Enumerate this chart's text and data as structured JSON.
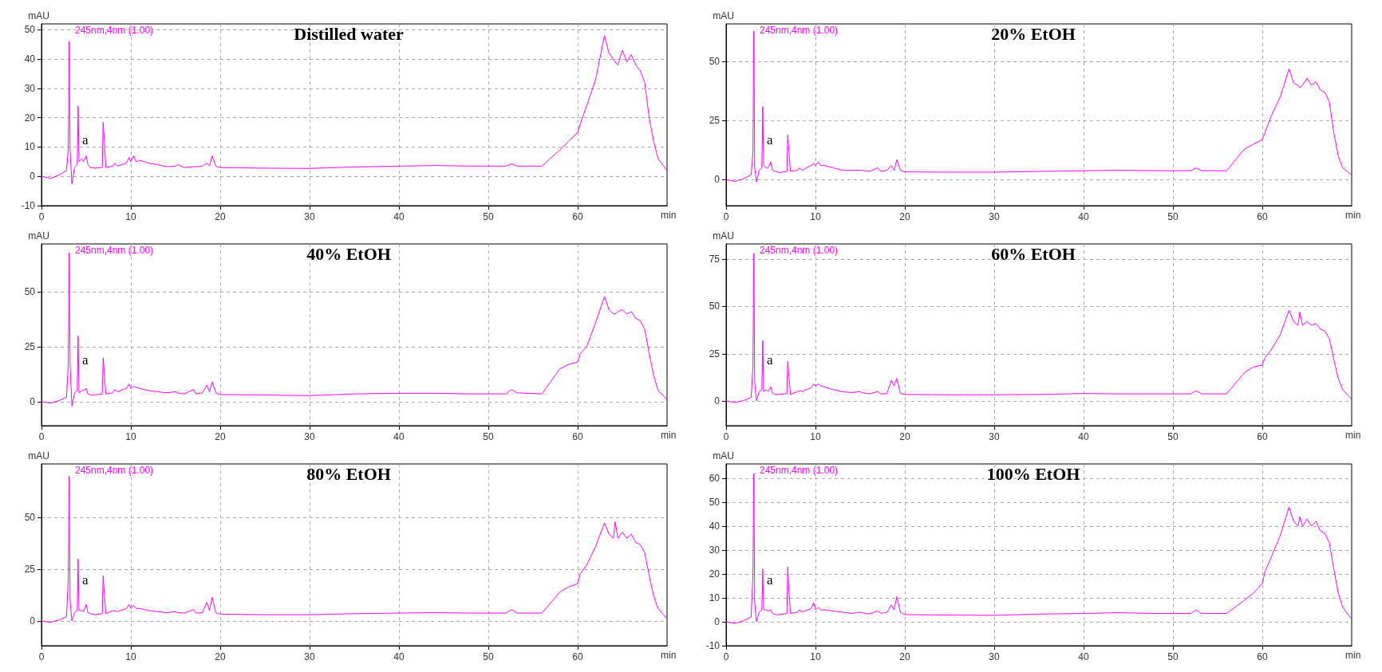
{
  "chart_data": [
    {
      "type": "line",
      "title": "Distilled water",
      "xlabel": "min",
      "ylabel": "mAU",
      "annotations": [
        "245nm,4nm (1.00)",
        "a"
      ],
      "xlim": [
        0,
        70
      ],
      "xticks": [
        0,
        10,
        20,
        30,
        40,
        50,
        60
      ],
      "ylim": [
        -10,
        52
      ],
      "yticks": [
        -10,
        0,
        10,
        20,
        30,
        40,
        50
      ],
      "grid": true,
      "x": [
        0,
        1,
        2,
        2.8,
        3.0,
        3.1,
        3.2,
        3.4,
        3.7,
        4.0,
        4.1,
        4.2,
        4.5,
        4.7,
        5.0,
        5.2,
        5.5,
        6.0,
        6.8,
        6.9,
        7.0,
        7.2,
        8,
        8.2,
        8.5,
        9.5,
        9.8,
        10,
        10.3,
        10.6,
        11,
        12,
        13,
        14,
        15,
        15.2,
        16,
        17,
        17.3,
        18,
        18.5,
        18.8,
        19.1,
        19.5,
        20,
        25,
        30,
        35,
        40,
        44,
        48,
        52,
        52.6,
        53.2,
        56,
        58,
        59,
        60,
        60.3,
        61,
        62,
        63,
        63.5,
        64,
        64.2,
        64.5,
        65,
        65.5,
        66,
        66.5,
        67,
        67.5,
        68,
        68.5,
        69,
        70
      ],
      "series": [
        {
          "color": "#ff00ff",
          "values": [
            0,
            -0.7,
            0.5,
            2,
            9,
            46,
            9,
            -2.5,
            3,
            4,
            24,
            5,
            6,
            5,
            7,
            4,
            3,
            2.8,
            3,
            18.5,
            14,
            3,
            3.5,
            4.5,
            3.5,
            4.5,
            6.5,
            5,
            7,
            5,
            5.5,
            4.5,
            4,
            3.3,
            3.5,
            4,
            3,
            3.3,
            3.3,
            3.5,
            4.5,
            3.5,
            7,
            3.5,
            3,
            2.8,
            2.7,
            3.2,
            3.5,
            3.7,
            3.5,
            3.5,
            4.3,
            3.5,
            3.5,
            9,
            12,
            15,
            18,
            24,
            33,
            48,
            42,
            40,
            39,
            38,
            43,
            39,
            41.5,
            38,
            36,
            32,
            20,
            12,
            6,
            2
          ]
        }
      ]
    },
    {
      "type": "line",
      "title": "20% EtOH",
      "xlabel": "min",
      "ylabel": "mAU",
      "annotations": [
        "245nm,4nm (1.00)",
        "a"
      ],
      "xlim": [
        0,
        70
      ],
      "xticks": [
        0,
        10,
        20,
        30,
        40,
        50,
        60
      ],
      "ylim": [
        -11,
        66
      ],
      "yticks": [
        0,
        25,
        50
      ],
      "grid": true,
      "x": [
        0,
        1,
        2,
        2.8,
        3.0,
        3.1,
        3.2,
        3.4,
        3.7,
        4.0,
        4.1,
        4.2,
        4.5,
        4.7,
        5.0,
        5.2,
        5.5,
        6.0,
        6.8,
        6.9,
        7.0,
        7.2,
        8,
        8.2,
        8.5,
        9.5,
        9.8,
        10,
        10.3,
        10.6,
        11,
        12,
        13,
        14,
        15,
        15.2,
        16,
        17,
        17.3,
        18,
        18.5,
        18.8,
        19.1,
        19.5,
        20,
        25,
        30,
        35,
        40,
        44,
        48,
        52,
        52.6,
        53.2,
        56,
        58,
        59,
        60,
        60.3,
        61,
        62,
        63,
        63.5,
        64,
        64.2,
        64.5,
        65,
        65.5,
        66,
        66.5,
        67,
        67.5,
        68,
        68.5,
        69,
        70
      ],
      "series": [
        {
          "color": "#ff00ff",
          "values": [
            0,
            -0.7,
            0.5,
            2,
            11,
            63,
            5,
            -1,
            4,
            5,
            31,
            6,
            5,
            5,
            7.5,
            4,
            3.5,
            3,
            3.5,
            19,
            14,
            3.5,
            4,
            5,
            4,
            6,
            7,
            6,
            7.5,
            6,
            6,
            5,
            4,
            4,
            4,
            4,
            3.5,
            5,
            3.5,
            4,
            6,
            4,
            8.5,
            4,
            3.3,
            3.2,
            3.2,
            3.5,
            3.8,
            4,
            3.8,
            3.8,
            5,
            3.8,
            3.8,
            13,
            15,
            17,
            20,
            27,
            35,
            47,
            41,
            40,
            39,
            40,
            43,
            40,
            41.5,
            38,
            37,
            33,
            20,
            10,
            5,
            2
          ]
        }
      ]
    },
    {
      "type": "line",
      "title": "40% EtOH",
      "xlabel": "min",
      "ylabel": "mAU",
      "annotations": [
        "245nm,4nm (1.00)",
        "a"
      ],
      "xlim": [
        0,
        70
      ],
      "xticks": [
        0,
        10,
        20,
        30,
        40,
        50,
        60
      ],
      "ylim": [
        -11,
        72
      ],
      "yticks": [
        0,
        25,
        50
      ],
      "grid": true,
      "x": [
        0,
        1,
        2,
        2.8,
        3.0,
        3.1,
        3.2,
        3.4,
        3.7,
        4.0,
        4.1,
        4.2,
        4.5,
        4.7,
        5.0,
        5.2,
        5.5,
        6.0,
        6.8,
        6.9,
        7.0,
        7.2,
        8,
        8.2,
        8.5,
        9.5,
        9.8,
        10,
        10.3,
        10.6,
        11,
        12,
        13,
        14,
        15,
        15.2,
        16,
        17,
        17.3,
        18,
        18.5,
        18.8,
        19.1,
        19.5,
        20,
        25,
        30,
        35,
        40,
        44,
        48,
        52,
        52.6,
        53.2,
        56,
        58,
        59,
        60,
        60.3,
        61,
        62,
        63,
        63.5,
        64,
        64.2,
        64.5,
        65,
        65.5,
        66,
        66.5,
        67,
        67.5,
        68,
        68.5,
        69,
        70
      ],
      "series": [
        {
          "color": "#ff00ff",
          "values": [
            0,
            -0.7,
            0.5,
            2,
            17,
            68,
            17,
            -2,
            4,
            5,
            30,
            4,
            5,
            5,
            6,
            3.5,
            3,
            3,
            3.5,
            20,
            15,
            3.5,
            4,
            5.5,
            4.5,
            6,
            8,
            6,
            7,
            6.5,
            6,
            5,
            4.5,
            4,
            4.5,
            4,
            3.5,
            5.5,
            3.5,
            4,
            7.5,
            4.5,
            9,
            4,
            3.2,
            3,
            2.7,
            3.5,
            3.8,
            3.8,
            3.5,
            3.5,
            5.5,
            4,
            3.5,
            15,
            17,
            18,
            22,
            25,
            36,
            48,
            42,
            40,
            40,
            41,
            42,
            40,
            41,
            38,
            37,
            33,
            22,
            12,
            5,
            1
          ]
        }
      ]
    },
    {
      "type": "line",
      "title": "60% EtOH",
      "xlabel": "min",
      "ylabel": "mAU",
      "annotations": [
        "245nm,4nm (1.00)",
        "a"
      ],
      "xlim": [
        0,
        70
      ],
      "xticks": [
        0,
        10,
        20,
        30,
        40,
        50,
        60
      ],
      "ylim": [
        -13,
        83
      ],
      "yticks": [
        0,
        25,
        50,
        75
      ],
      "grid": true,
      "x": [
        0,
        1,
        2,
        2.8,
        3.0,
        3.1,
        3.2,
        3.4,
        3.7,
        4.0,
        4.1,
        4.2,
        4.5,
        4.7,
        5.0,
        5.2,
        5.5,
        6.0,
        6.8,
        6.9,
        7.0,
        7.2,
        8,
        8.2,
        8.5,
        9.5,
        9.8,
        10,
        10.3,
        10.6,
        11,
        12,
        13,
        14,
        15,
        15.2,
        16,
        17,
        17.3,
        18,
        18.5,
        18.8,
        19.1,
        19.5,
        20,
        25,
        30,
        35,
        40,
        44,
        48,
        52,
        52.6,
        53.2,
        56,
        58,
        59,
        60,
        60.3,
        61,
        62,
        63,
        63.5,
        64,
        64.2,
        64.5,
        65,
        65.5,
        66,
        66.5,
        67,
        67.5,
        68,
        68.5,
        69,
        70
      ],
      "series": [
        {
          "color": "#ff00ff",
          "values": [
            0,
            -0.8,
            0.3,
            2,
            18,
            78,
            10,
            0,
            5,
            6,
            32,
            5,
            6,
            5,
            7.5,
            4,
            3.5,
            3.5,
            4,
            21,
            15,
            3.5,
            5,
            5.5,
            5,
            7,
            9,
            8,
            9,
            8,
            7.5,
            6,
            5,
            4.5,
            5,
            4.5,
            3.8,
            5,
            3.8,
            4,
            11,
            8,
            12,
            4,
            3.5,
            3.3,
            3.3,
            3.5,
            4,
            3.8,
            3.8,
            3.8,
            5.5,
            3.8,
            3.8,
            15,
            18,
            19,
            23,
            27,
            35,
            48,
            42,
            40,
            47,
            40,
            42,
            40,
            41,
            38,
            37,
            33,
            22,
            12,
            6,
            1
          ]
        }
      ]
    },
    {
      "type": "line",
      "title": "80% EtOH",
      "xlabel": "min",
      "ylabel": "mAU",
      "annotations": [
        "245nm,4nm (1.00)",
        "a"
      ],
      "xlim": [
        0,
        70
      ],
      "xticks": [
        0,
        10,
        20,
        30,
        40,
        50,
        60
      ],
      "ylim": [
        -12,
        76
      ],
      "yticks": [
        0,
        25,
        50
      ],
      "grid": true,
      "x": [
        0,
        1,
        2,
        2.8,
        3.0,
        3.1,
        3.2,
        3.4,
        3.7,
        4.0,
        4.1,
        4.2,
        4.5,
        4.7,
        5.0,
        5.2,
        5.5,
        6.0,
        6.8,
        6.9,
        7.0,
        7.2,
        8,
        8.2,
        8.5,
        9.5,
        9.8,
        10,
        10.3,
        10.6,
        11,
        12,
        13,
        14,
        15,
        15.2,
        16,
        17,
        17.3,
        18,
        18.5,
        18.8,
        19.1,
        19.5,
        20,
        25,
        30,
        35,
        40,
        44,
        48,
        52,
        52.6,
        53.2,
        56,
        58,
        59,
        60,
        60.3,
        61,
        62,
        63,
        63.5,
        64,
        64.2,
        64.5,
        65,
        65.5,
        66,
        66.5,
        67,
        67.5,
        68,
        68.5,
        69,
        70
      ],
      "series": [
        {
          "color": "#ff00ff",
          "values": [
            0,
            -0.7,
            0.5,
            2,
            21,
            70,
            10,
            0,
            4,
            5,
            30,
            5,
            5,
            4.5,
            8,
            4,
            3.5,
            3,
            3.5,
            22,
            15,
            3.5,
            5,
            5,
            4.5,
            6,
            8,
            6,
            7.5,
            6,
            6,
            5,
            4.5,
            4,
            4.5,
            4,
            3.8,
            5.5,
            3.8,
            4,
            9,
            5,
            11.5,
            4,
            3.3,
            3,
            3,
            3.5,
            3.8,
            4,
            3.8,
            3.8,
            5.5,
            3.8,
            3.8,
            14,
            16.5,
            18,
            23,
            27,
            36,
            47.5,
            42,
            40,
            48,
            40,
            43,
            40,
            42,
            38,
            37,
            33,
            22,
            12,
            6,
            1
          ]
        }
      ]
    },
    {
      "type": "line",
      "title": "100% EtOH",
      "xlabel": "min",
      "ylabel": "mAU",
      "annotations": [
        "245nm,4nm (1.00)",
        "a"
      ],
      "xlim": [
        0,
        70
      ],
      "xticks": [
        0,
        10,
        20,
        30,
        40,
        50,
        60
      ],
      "ylim": [
        -10,
        66
      ],
      "yticks": [
        -10,
        0,
        10,
        20,
        30,
        40,
        50,
        60
      ],
      "grid": true,
      "x": [
        0,
        1,
        2,
        2.8,
        3.0,
        3.1,
        3.2,
        3.4,
        3.7,
        4.0,
        4.1,
        4.2,
        4.5,
        4.7,
        5.0,
        5.2,
        5.5,
        6.0,
        6.8,
        6.9,
        7.0,
        7.2,
        8,
        8.2,
        8.5,
        9.5,
        9.8,
        10,
        10.3,
        10.6,
        11,
        12,
        13,
        14,
        15,
        15.2,
        16,
        17,
        17.3,
        18,
        18.5,
        18.8,
        19.1,
        19.5,
        20,
        25,
        30,
        35,
        40,
        44,
        48,
        52,
        52.6,
        53.2,
        56,
        58,
        59,
        60,
        60.3,
        61,
        62,
        63,
        63.5,
        64,
        64.2,
        64.5,
        65,
        65.5,
        66,
        66.5,
        67,
        67.5,
        68,
        68.5,
        69,
        70
      ],
      "series": [
        {
          "color": "#ff00ff",
          "values": [
            0,
            -0.7,
            0.5,
            2,
            19,
            62,
            8,
            0,
            4,
            5,
            22,
            5,
            5,
            4.5,
            5,
            3.5,
            3,
            3,
            3.5,
            23,
            15,
            3.5,
            4,
            5,
            4,
            5.5,
            8,
            5,
            6,
            5,
            5,
            4.5,
            4,
            3.5,
            4,
            3.8,
            3.3,
            4.5,
            3.5,
            4,
            7,
            5,
            10.5,
            4,
            3,
            2.8,
            2.7,
            3.2,
            3.5,
            3.8,
            3.5,
            3.5,
            5,
            3.5,
            3.5,
            9,
            12,
            16,
            21,
            27,
            36,
            48,
            42,
            40,
            44,
            40,
            43,
            40,
            42,
            38,
            37,
            33,
            22,
            12,
            6,
            1
          ]
        }
      ]
    }
  ]
}
